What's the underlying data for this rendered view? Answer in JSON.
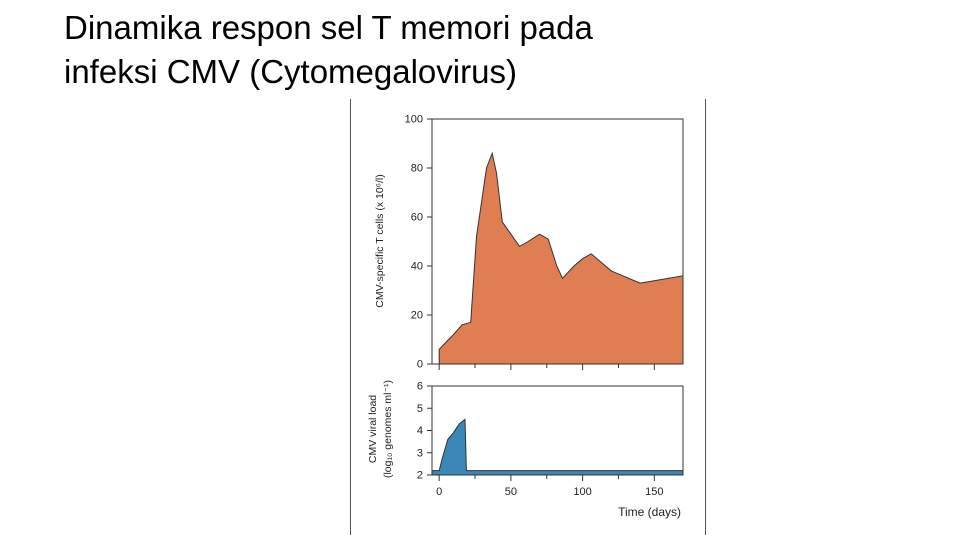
{
  "slide": {
    "title_line1": "Dinamika respon sel T memori pada",
    "title_line2": "infeksi CMV (Cytomegalovirus)"
  },
  "chart_data": [
    {
      "type": "area",
      "ylabel": "CMV-specific T cells (x 10⁶/l)",
      "ylim": [
        0,
        100
      ],
      "yticks": [
        0,
        20,
        40,
        60,
        80,
        100
      ],
      "xlim": [
        -5,
        170
      ],
      "fill": "#E07E53",
      "points": [
        [
          0,
          6
        ],
        [
          5,
          9
        ],
        [
          10,
          12
        ],
        [
          16,
          16
        ],
        [
          22,
          17
        ],
        [
          26,
          52
        ],
        [
          29,
          64
        ],
        [
          33,
          80
        ],
        [
          37,
          86
        ],
        [
          40,
          78
        ],
        [
          44,
          58
        ],
        [
          50,
          53
        ],
        [
          56,
          48
        ],
        [
          62,
          50
        ],
        [
          70,
          53
        ],
        [
          76,
          51
        ],
        [
          82,
          40
        ],
        [
          86,
          35
        ],
        [
          94,
          40
        ],
        [
          100,
          43
        ],
        [
          106,
          45
        ],
        [
          112,
          42
        ],
        [
          120,
          38
        ],
        [
          128,
          36
        ],
        [
          140,
          33
        ],
        [
          150,
          34
        ],
        [
          160,
          35
        ],
        [
          170,
          36
        ]
      ]
    },
    {
      "type": "area",
      "ylabel_line1": "CMV viral load",
      "ylabel_line2": "(log₁₀ genomes ml⁻¹)",
      "ylim": [
        2,
        6
      ],
      "yticks": [
        2,
        3,
        4,
        5,
        6
      ],
      "xlim": [
        -5,
        170
      ],
      "xticks": [
        0,
        50,
        100,
        150
      ],
      "xlabel": "Time (days)",
      "fill": "#3A87B8",
      "points": [
        [
          -5,
          2.2
        ],
        [
          0,
          2.2
        ],
        [
          2,
          2.7
        ],
        [
          6,
          3.6
        ],
        [
          10,
          3.9
        ],
        [
          14,
          4.3
        ],
        [
          18,
          4.5
        ],
        [
          19,
          2.2
        ],
        [
          170,
          2.2
        ]
      ]
    }
  ]
}
